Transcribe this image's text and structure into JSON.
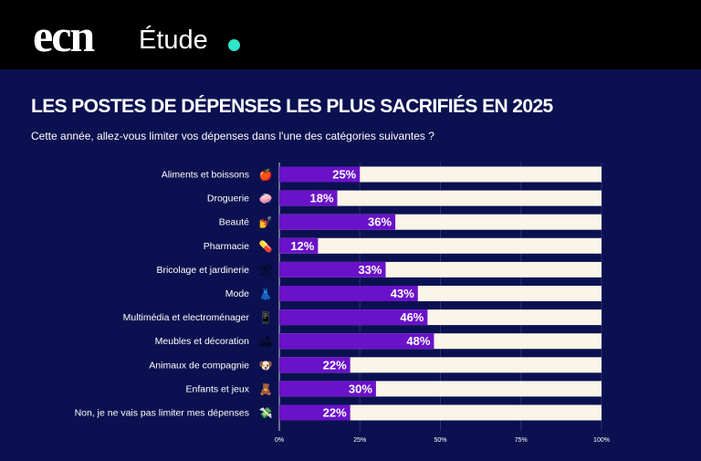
{
  "header": {
    "logo": "ecn",
    "label": "Étude",
    "dot_color": "#2ee6c8"
  },
  "chart_data": {
    "type": "bar",
    "orientation": "horizontal",
    "stacked_remainder": true,
    "title": "LES POSTES DE DÉPENSES LES PLUS SACRIFIÉS EN 2025",
    "subtitle": "Cette année, allez-vous limiter vos dépenses dans l'une des catégories suivantes ?",
    "categories": [
      "Aliments et boissons",
      "Droguerie",
      "Beauté",
      "Pharmacie",
      "Bricolage et jardinerie",
      "Mode",
      "Multimédia et electroménager",
      "Meubles et décoration",
      "Animaux de compagnie",
      "Enfants et jeux",
      "Non, je ne vais pas limiter mes dépenses"
    ],
    "icons": [
      "🍎",
      "🧼",
      "💅",
      "💊",
      "🛠",
      "👗",
      "📱",
      "🛋",
      "🐶",
      "🧸",
      "💸"
    ],
    "values": [
      25,
      18,
      36,
      12,
      33,
      43,
      46,
      48,
      22,
      30,
      22
    ],
    "value_labels": [
      "25%",
      "18%",
      "36%",
      "12%",
      "33%",
      "43%",
      "46%",
      "48%",
      "22%",
      "30%",
      "22%"
    ],
    "xlim": [
      0,
      100
    ],
    "xticks": [
      "0%",
      "25%",
      "50%",
      "75%",
      "100%"
    ],
    "grid": true,
    "colors": {
      "bar": "#6a12c9",
      "remainder": "#fbf5e8",
      "background": "#0b1150"
    }
  }
}
